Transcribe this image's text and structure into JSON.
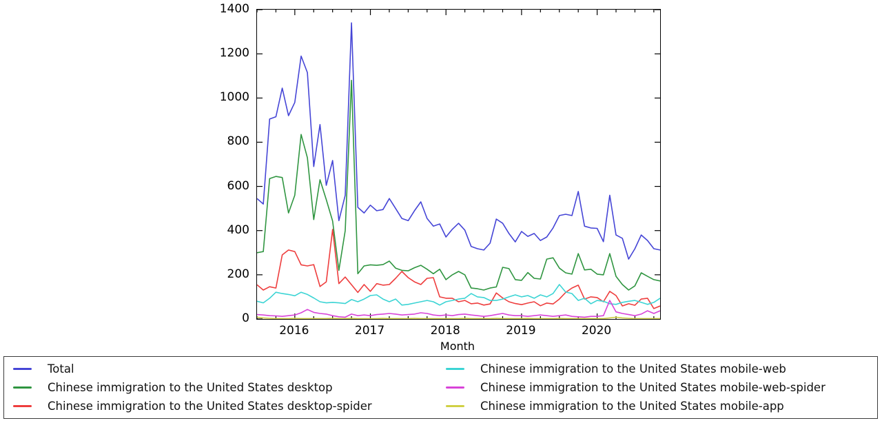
{
  "figure": {
    "xlabel": "Month",
    "background_color": "#ffffff",
    "axis_color": "#000000",
    "legend_border_color": "#3a3a3a"
  },
  "chart_data": {
    "type": "line",
    "title": "",
    "xlabel": "Month",
    "ylabel": "",
    "ylim": [
      0,
      1400
    ],
    "grid": false,
    "legend_position": "bottom",
    "y_ticks": [
      0,
      200,
      400,
      600,
      800,
      1000,
      1200,
      1400
    ],
    "x_tick_labels": [
      "2016",
      "2017",
      "2018",
      "2019",
      "2020"
    ],
    "x_tick_month_indices": [
      6,
      18,
      30,
      42,
      54
    ],
    "minor_x_tick_every_months": 3,
    "x": [
      "2015-07",
      "2015-08",
      "2015-09",
      "2015-10",
      "2015-11",
      "2015-12",
      "2016-01",
      "2016-02",
      "2016-03",
      "2016-04",
      "2016-05",
      "2016-06",
      "2016-07",
      "2016-08",
      "2016-09",
      "2016-10",
      "2016-11",
      "2016-12",
      "2017-01",
      "2017-02",
      "2017-03",
      "2017-04",
      "2017-05",
      "2017-06",
      "2017-07",
      "2017-08",
      "2017-09",
      "2017-10",
      "2017-11",
      "2017-12",
      "2018-01",
      "2018-02",
      "2018-03",
      "2018-04",
      "2018-05",
      "2018-06",
      "2018-07",
      "2018-08",
      "2018-09",
      "2018-10",
      "2018-11",
      "2018-12",
      "2019-01",
      "2019-02",
      "2019-03",
      "2019-04",
      "2019-05",
      "2019-06",
      "2019-07",
      "2019-08",
      "2019-09",
      "2019-10",
      "2019-11",
      "2019-12",
      "2020-01",
      "2020-02",
      "2020-03",
      "2020-04",
      "2020-05",
      "2020-06",
      "2020-07",
      "2020-08",
      "2020-09",
      "2020-10",
      "2020-11"
    ],
    "series": [
      {
        "name": "Total",
        "color": "#4545d6",
        "values": [
          545,
          520,
          905,
          915,
          1045,
          920,
          980,
          1190,
          1115,
          690,
          880,
          605,
          717,
          445,
          560,
          1340,
          505,
          480,
          515,
          490,
          495,
          545,
          500,
          455,
          445,
          490,
          530,
          455,
          420,
          430,
          371,
          406,
          433,
          402,
          328,
          318,
          312,
          343,
          452,
          433,
          387,
          349,
          396,
          374,
          387,
          355,
          371,
          412,
          468,
          474,
          468,
          577,
          420,
          412,
          410,
          350,
          560,
          380,
          365,
          271,
          318,
          380,
          355,
          318,
          312
        ]
      },
      {
        "name": "Chinese immigration to the United States desktop",
        "color": "#2f9540",
        "values": [
          300,
          305,
          635,
          645,
          640,
          480,
          560,
          835,
          730,
          450,
          630,
          540,
          443,
          220,
          400,
          1080,
          205,
          240,
          245,
          243,
          246,
          262,
          230,
          220,
          218,
          232,
          243,
          225,
          205,
          225,
          178,
          200,
          215,
          200,
          140,
          137,
          131,
          140,
          145,
          234,
          228,
          178,
          175,
          210,
          184,
          181,
          271,
          277,
          230,
          209,
          203,
          296,
          222,
          225,
          203,
          200,
          296,
          193,
          156,
          131,
          150,
          209,
          193,
          178,
          172
        ]
      },
      {
        "name": "Chinese immigration to the United States desktop-spider",
        "color": "#ee3d3d",
        "values": [
          155,
          131,
          146,
          140,
          290,
          312,
          305,
          245,
          240,
          246,
          147,
          168,
          405,
          160,
          190,
          155,
          120,
          156,
          125,
          160,
          153,
          156,
          184,
          215,
          187,
          168,
          156,
          184,
          187,
          100,
          94,
          94,
          78,
          84,
          69,
          72,
          63,
          68,
          118,
          95,
          78,
          70,
          65,
          72,
          78,
          60,
          72,
          68,
          90,
          120,
          140,
          153,
          90,
          100,
          97,
          78,
          125,
          106,
          59,
          69,
          62,
          90,
          94,
          47,
          59
        ]
      },
      {
        "name": "Chinese immigration to the United States mobile-web",
        "color": "#3bd4d4",
        "values": [
          80,
          73,
          94,
          121,
          115,
          111,
          105,
          121,
          111,
          95,
          78,
          73,
          75,
          73,
          70,
          88,
          78,
          90,
          106,
          109,
          90,
          78,
          90,
          63,
          66,
          72,
          78,
          84,
          78,
          63,
          78,
          84,
          90,
          94,
          115,
          100,
          97,
          84,
          84,
          90,
          100,
          109,
          100,
          106,
          94,
          109,
          100,
          115,
          156,
          122,
          115,
          84,
          94,
          69,
          84,
          80,
          69,
          66,
          75,
          80,
          84,
          75,
          66,
          75,
          94
        ]
      },
      {
        "name": "Chinese immigration to the United States mobile-web-spider",
        "color": "#d843d8",
        "values": [
          20,
          18,
          15,
          14,
          12,
          15,
          18,
          28,
          43,
          30,
          25,
          22,
          15,
          10,
          8,
          22,
          15,
          18,
          15,
          20,
          22,
          25,
          22,
          18,
          20,
          22,
          28,
          25,
          18,
          15,
          18,
          15,
          20,
          22,
          18,
          15,
          12,
          15,
          20,
          25,
          18,
          15,
          15,
          12,
          15,
          18,
          15,
          12,
          15,
          18,
          12,
          10,
          8,
          12,
          12,
          15,
          84,
          32,
          25,
          20,
          15,
          22,
          37,
          25,
          37
        ]
      },
      {
        "name": "Chinese immigration to the United States mobile-app",
        "color": "#d0d044",
        "values": [
          8,
          5,
          3,
          2,
          2,
          2,
          3,
          2,
          2,
          2,
          2,
          2,
          3,
          2,
          2,
          3,
          2,
          2,
          2,
          2,
          3,
          2,
          2,
          2,
          2,
          3,
          2,
          2,
          2,
          2,
          2,
          2,
          2,
          3,
          2,
          2,
          2,
          2,
          3,
          2,
          2,
          2,
          2,
          3,
          2,
          2,
          2,
          2,
          3,
          2,
          2,
          2,
          2,
          2,
          2,
          2,
          5,
          8,
          5,
          3,
          2,
          2,
          2,
          2,
          2
        ]
      }
    ]
  }
}
